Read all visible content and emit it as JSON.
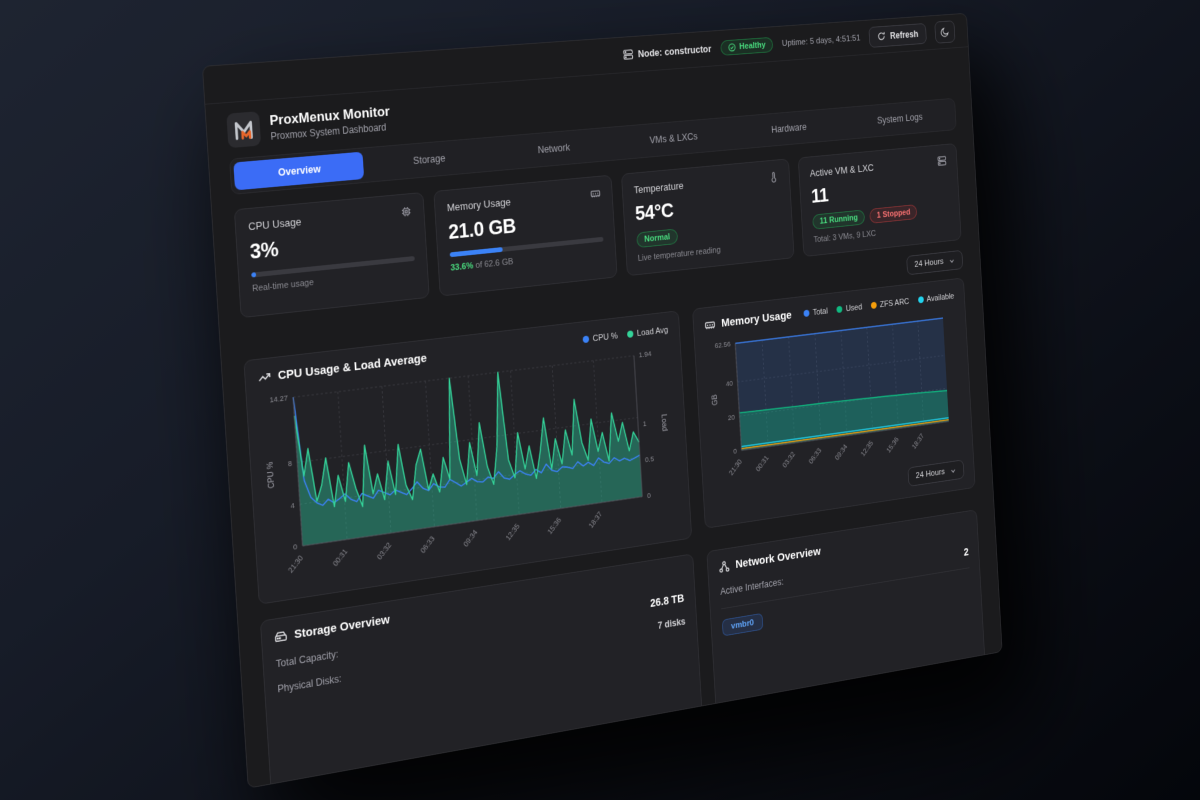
{
  "topbar": {
    "node_label": "Node: constructor",
    "health_badge": "Healthy",
    "uptime": "Uptime: 5 days, 4:51:51",
    "refresh_label": "Refresh",
    "icons": [
      "server-icon",
      "check-circle-icon",
      "refresh-icon",
      "moon-icon"
    ]
  },
  "header": {
    "title": "ProxMenux Monitor",
    "subtitle": "Proxmox System Dashboard",
    "logo_colors": {
      "gray": "#c3c6cc",
      "orange": "#e8662b"
    }
  },
  "tabs": [
    {
      "label": "Overview",
      "active": true
    },
    {
      "label": "Storage",
      "active": false
    },
    {
      "label": "Network",
      "active": false
    },
    {
      "label": "VMs & LXCs",
      "active": false
    },
    {
      "label": "Hardware",
      "active": false
    },
    {
      "label": "System Logs",
      "active": false
    }
  ],
  "stats": {
    "cpu": {
      "label": "CPU Usage",
      "value": "3%",
      "progress": 3,
      "caption": "Real-time usage",
      "icon": "cpu-icon"
    },
    "memory": {
      "label": "Memory Usage",
      "value": "21.0 GB",
      "progress": 33.6,
      "caption_highlight": "33.6%",
      "caption_rest": " of 62.6 GB",
      "icon": "memory-icon"
    },
    "temperature": {
      "label": "Temperature",
      "value": "54°C",
      "badge": "Normal",
      "caption": "Live temperature reading",
      "icon": "thermometer-icon"
    },
    "vms": {
      "label": "Active VM & LXC",
      "value": "11",
      "badge_running": "11 Running",
      "badge_stopped": "1 Stopped",
      "caption": "Total: 3 VMs, 9 LXC",
      "icon": "server-icon"
    }
  },
  "time_range": {
    "value": "24 Hours",
    "icon": "chevron-down-icon"
  },
  "chart_data": [
    {
      "type": "area",
      "title": "CPU Usage & Load Average",
      "title_icon": "trending-up-icon",
      "x": [
        "21:30",
        "00:31",
        "03:32",
        "06:33",
        "09:34",
        "12:35",
        "15:36",
        "18:37"
      ],
      "y_left": {
        "label": "CPU %",
        "ticks": [
          0,
          4,
          8,
          14.27
        ],
        "max": 14.27
      },
      "y_right": {
        "label": "Load",
        "ticks": [
          0,
          0.5,
          1,
          1.94
        ],
        "max": 1.94
      },
      "grid": true,
      "legend_position": "top-right",
      "series": [
        {
          "name": "CPU %",
          "color": "#3b82f6",
          "fill": "none",
          "axis": "left",
          "values": [
            14.27,
            6.2,
            4.5,
            3.9,
            3.6,
            4.1,
            3.7,
            4,
            4.4,
            3.8,
            3.5,
            4.2,
            3.9,
            3.6,
            4.3,
            4,
            3.7,
            4.1,
            3.8,
            3.5,
            4,
            4.6,
            3.9,
            3.6,
            4.2,
            3.8,
            3.7,
            4.4,
            4,
            3.6,
            3.9,
            4.2,
            3.8,
            3.7,
            4.1,
            3.9,
            4.5,
            3.8,
            3.6,
            4,
            4.3,
            3.9,
            3.7,
            4.2,
            3.8,
            4.6,
            3.9,
            3.7,
            4.1,
            4,
            3.8,
            4.4,
            3.9,
            4.2,
            3.8,
            4.5,
            4,
            3.8,
            4.3,
            3.9,
            4.1,
            3.8,
            4,
            4.2
          ]
        },
        {
          "name": "Load Avg",
          "color": "#34d399",
          "fill": "rgba(45,212,168,0.38)",
          "axis": "right",
          "values": [
            1.7,
            0.9,
            1.25,
            0.55,
            0.75,
            1.1,
            0.45,
            0.85,
            0.5,
            1,
            0.65,
            0.4,
            1.2,
            0.55,
            0.8,
            0.45,
            0.95,
            0.5,
            1.15,
            0.6,
            0.4,
            0.85,
            1.05,
            0.5,
            0.7,
            0.45,
            0.9,
            0.6,
            1.94,
            0.85,
            0.5,
            1.05,
            0.6,
            1.3,
            0.7,
            0.45,
            0.95,
            1.94,
            0.75,
            0.5,
            1.1,
            0.6,
            0.9,
            0.45,
            0.8,
            1.25,
            0.55,
            0.95,
            0.6,
            1.05,
            0.7,
            1.45,
            0.85,
            0.6,
            1.15,
            0.7,
            0.95,
            0.55,
            1.2,
            0.8,
            1.05,
            0.65,
            0.9,
            0.75
          ]
        }
      ]
    },
    {
      "type": "area",
      "title": "Memory Usage",
      "title_icon": "memory-icon",
      "x": [
        "21:30",
        "00:31",
        "03:32",
        "06:33",
        "09:34",
        "12:35",
        "15:36",
        "18:37"
      ],
      "y_left": {
        "label": "GB",
        "ticks": [
          0,
          20,
          40,
          62.56
        ],
        "max": 62.56
      },
      "grid": true,
      "legend_position": "top-right",
      "series": [
        {
          "name": "Total",
          "color": "#3b82f6",
          "fill": "rgba(59,130,246,0.16)",
          "axis": "left",
          "values": [
            62.56,
            62.56,
            62.56,
            62.56,
            62.56,
            62.56,
            62.56,
            62.56
          ]
        },
        {
          "name": "Used",
          "color": "#10b981",
          "fill": "rgba(16,185,129,0.35)",
          "axis": "left",
          "values": [
            21.9,
            21.6,
            21.3,
            21.0,
            20.6,
            20.1,
            19.5,
            18.7
          ]
        },
        {
          "name": "ZFS ARC",
          "color": "#f59e0b",
          "fill": "none",
          "axis": "left",
          "values": [
            1.0,
            1.0,
            1.0,
            1.0,
            1.0,
            1.0,
            1.0,
            1.0
          ]
        },
        {
          "name": "Available",
          "color": "#22d3ee",
          "fill": "none",
          "axis": "left",
          "values": [
            2.2,
            2.2,
            2.2,
            2.2,
            2.2,
            2.2,
            2.2,
            2.2
          ]
        }
      ]
    }
  ],
  "storage": {
    "title": "Storage Overview",
    "icon": "hard-drive-icon",
    "rows": [
      {
        "label": "Total Capacity:",
        "value": "26.8 TB"
      },
      {
        "label": "Physical Disks:",
        "value": "7 disks"
      }
    ]
  },
  "network": {
    "title": "Network Overview",
    "icon": "network-icon",
    "active_interfaces_label": "Active Interfaces:",
    "active_interfaces_value": "2",
    "interface_chip": "vmbr0"
  },
  "colors": {
    "accent": "#3b6cf6",
    "progress": "#3b82f6",
    "ok": "#4ade80",
    "error": "#f87171"
  }
}
